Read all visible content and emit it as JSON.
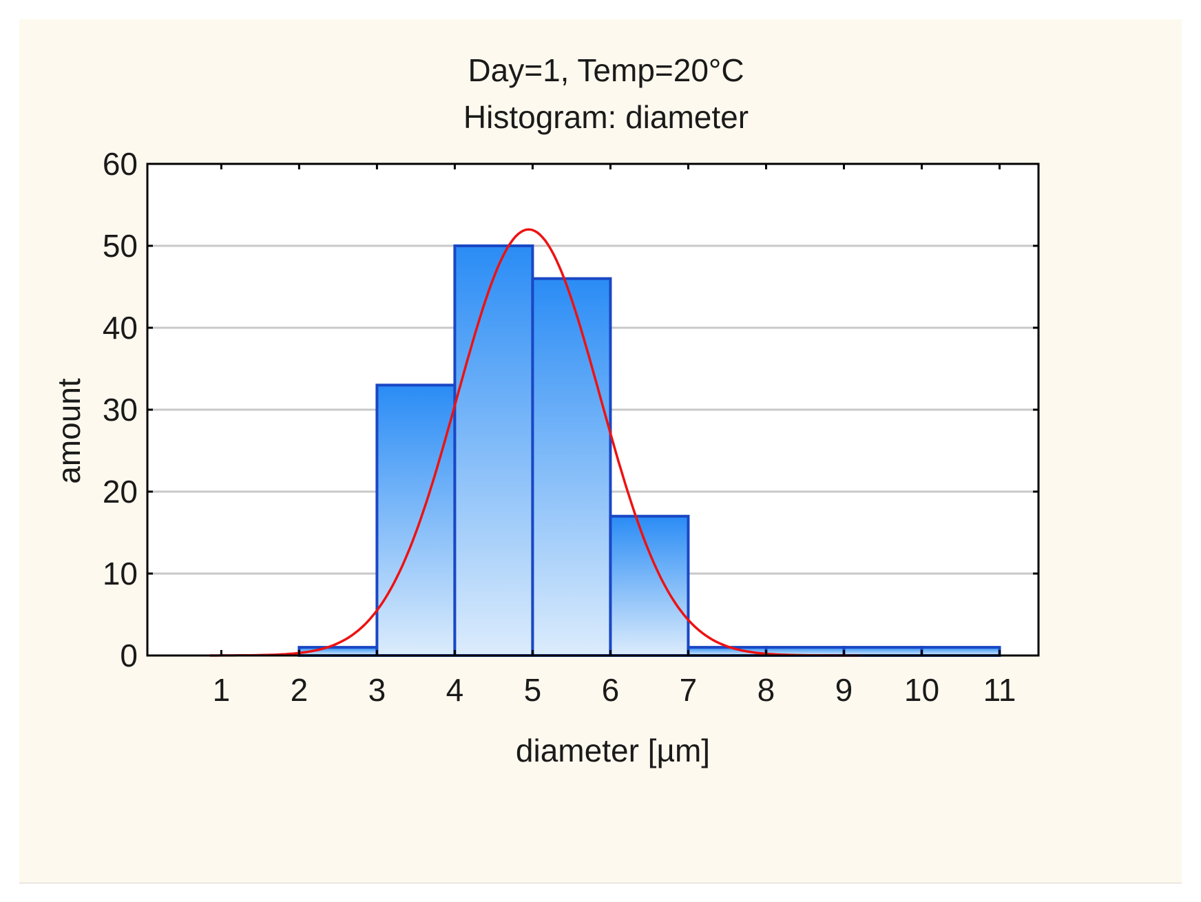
{
  "chart_data": {
    "type": "bar",
    "title": "Day=1, Temp=20°C",
    "subtitle": "Histogram: diameter",
    "xlabel": "diameter [µm]",
    "ylabel": "amount",
    "x_ticks": [
      "1",
      "2",
      "3",
      "4",
      "5",
      "6",
      "7",
      "8",
      "9",
      "10",
      "11"
    ],
    "y_ticks": [
      "0",
      "10",
      "20",
      "30",
      "40",
      "50",
      "60"
    ],
    "xlim": [
      0.05,
      11.5
    ],
    "ylim": [
      0,
      60
    ],
    "grid": true,
    "bins": [
      {
        "from": 1,
        "to": 2,
        "value": 0
      },
      {
        "from": 2,
        "to": 3,
        "value": 1
      },
      {
        "from": 3,
        "to": 4,
        "value": 33
      },
      {
        "from": 4,
        "to": 5,
        "value": 50
      },
      {
        "from": 5,
        "to": 6,
        "value": 46
      },
      {
        "from": 6,
        "to": 7,
        "value": 17
      },
      {
        "from": 7,
        "to": 8,
        "value": 1
      },
      {
        "from": 8,
        "to": 9,
        "value": 1
      },
      {
        "from": 9,
        "to": 10,
        "value": 1
      },
      {
        "from": 10,
        "to": 11,
        "value": 1
      }
    ],
    "fitted_curve": {
      "type": "normal",
      "mean": 4.95,
      "sd": 0.92,
      "peak": 52,
      "x_range": [
        0.85,
        9.2
      ]
    },
    "colors": {
      "bar_top": "#2a8cf5",
      "bar_bottom": "#dcecfc",
      "bar_border": "#1a47c4",
      "curve": "#ee1111",
      "grid": "#c8c8c8",
      "background": "#fef9ee"
    }
  }
}
